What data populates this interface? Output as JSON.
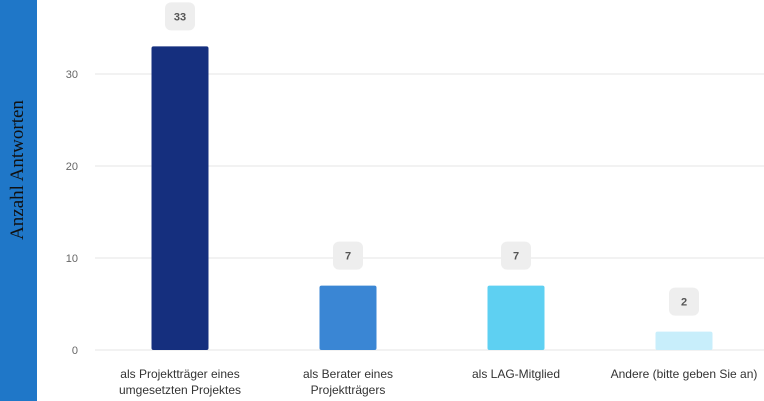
{
  "chart_data": {
    "type": "bar",
    "title": "",
    "xlabel": "",
    "ylabel": "Anzahl Antworten",
    "categories": [
      [
        "als Projektträger eines",
        "umgesetzten Projektes"
      ],
      [
        "als Berater eines",
        "Projektträgers"
      ],
      [
        "als LAG-Mitglied"
      ],
      [
        "Andere (bitte geben Sie an)"
      ]
    ],
    "values": [
      33,
      7,
      7,
      2
    ],
    "value_labels": [
      "33",
      "7",
      "7",
      "2"
    ],
    "bar_colors": [
      "#152f7e",
      "#3a86d4",
      "#5ed0f2",
      "#c8eefb"
    ],
    "yticks": [
      0,
      10,
      20,
      30
    ],
    "ytick_labels": [
      "0",
      "10",
      "20",
      "30"
    ],
    "ylim": [
      0,
      36
    ],
    "grid": true,
    "legend": "none"
  },
  "theme": {
    "side_band_color": "#1f77c8",
    "grid_color": "#e6e6e6",
    "label_box_color": "#eeeeee"
  }
}
